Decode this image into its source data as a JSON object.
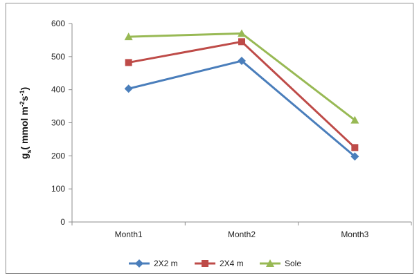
{
  "chart_data": {
    "type": "line",
    "categories": [
      "Month1",
      "Month2",
      "Month3"
    ],
    "series": [
      {
        "name": "2X2 m",
        "values": [
          403,
          487,
          198
        ],
        "color": "#4a7ebb",
        "marker": "diamond"
      },
      {
        "name": "2X4 m",
        "values": [
          482,
          545,
          225
        ],
        "color": "#be4b48",
        "marker": "square"
      },
      {
        "name": "Sole",
        "values": [
          560,
          570,
          308
        ],
        "color": "#98b954",
        "marker": "triangle"
      }
    ],
    "ylabel": {
      "prefix": "g",
      "sub": "s",
      "main": "( mmol m",
      "sup1": "-2",
      "mid": "s",
      "sup2": "-1",
      "end": ")"
    },
    "ylim": [
      0,
      600
    ],
    "yticks": [
      "0",
      "100",
      "200",
      "300",
      "400",
      "500",
      "600"
    ],
    "grid": false,
    "legend": "bottom"
  }
}
